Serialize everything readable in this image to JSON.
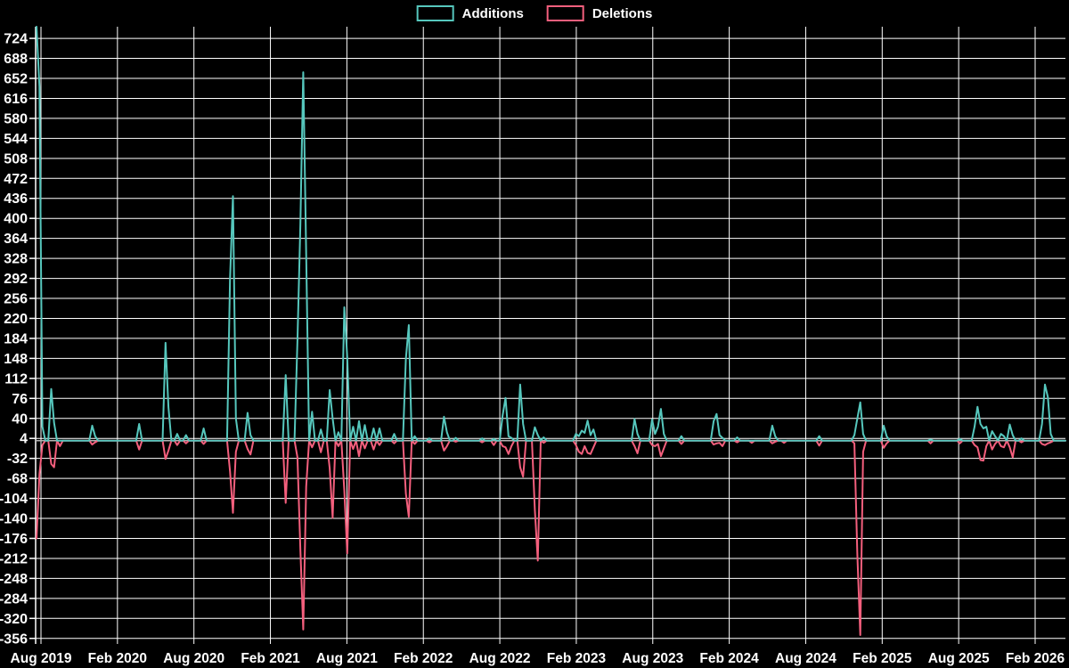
{
  "legend": {
    "items": [
      {
        "label": "Additions",
        "color": "#56c7bd"
      },
      {
        "label": "Deletions",
        "color": "#f45f7d"
      }
    ]
  },
  "colors": {
    "background": "#000000",
    "grid": "#ffffff",
    "axis": "#ffffff",
    "zero_line": "#b3b3b3",
    "text": "#ffffff",
    "additions": "#56c7bd",
    "deletions": "#f45f7d"
  },
  "chart_data": {
    "type": "line",
    "title": "",
    "xlabel": "",
    "ylabel": "",
    "grid": true,
    "legend_position": "top-center",
    "x_ticks": [
      "Aug 2019",
      "Feb 2020",
      "Aug 2020",
      "Feb 2021",
      "Aug 2021",
      "Feb 2022",
      "Aug 2022",
      "Feb 2023",
      "Aug 2023",
      "Feb 2024",
      "Aug 2024",
      "Feb 2025",
      "Aug 2025",
      "Feb 2026"
    ],
    "y_ticks": [
      724,
      688,
      652,
      616,
      580,
      544,
      508,
      472,
      436,
      400,
      364,
      328,
      292,
      256,
      220,
      184,
      148,
      112,
      76,
      40,
      4,
      -32,
      -68,
      -104,
      -140,
      -176,
      -212,
      -248,
      -284,
      -320,
      -356
    ],
    "ylim": [
      -366,
      745
    ],
    "series": [
      {
        "name": "Additions",
        "color": "#56c7bd"
      },
      {
        "name": "Deletions",
        "color": "#f45f7d"
      }
    ],
    "weeks_total": 352,
    "points_format": [
      "week_index",
      "additions",
      "deletions"
    ],
    "points_note": "weekly data; weeks not listed are [0,0]; first week starts late Jul 2019",
    "points": [
      [
        0,
        745,
        -176
      ],
      [
        1,
        637,
        -60
      ],
      [
        2,
        25,
        -8
      ],
      [
        5,
        93,
        -42
      ],
      [
        6,
        32,
        -48
      ],
      [
        8,
        0,
        -10
      ],
      [
        19,
        27,
        -7
      ],
      [
        20,
        8,
        -3
      ],
      [
        35,
        30,
        -16
      ],
      [
        44,
        176,
        -33
      ],
      [
        45,
        60,
        -18
      ],
      [
        48,
        12,
        -8
      ],
      [
        51,
        10,
        -5
      ],
      [
        57,
        22,
        -6
      ],
      [
        66,
        290,
        -55
      ],
      [
        67,
        440,
        -130
      ],
      [
        68,
        40,
        -20
      ],
      [
        72,
        50,
        -15
      ],
      [
        73,
        10,
        -25
      ],
      [
        85,
        118,
        -112
      ],
      [
        89,
        180,
        -30
      ],
      [
        90,
        390,
        -197
      ],
      [
        91,
        663,
        -340
      ],
      [
        92,
        336,
        -83
      ],
      [
        94,
        52,
        -12
      ],
      [
        97,
        20,
        -21
      ],
      [
        100,
        91,
        -50
      ],
      [
        101,
        40,
        -139
      ],
      [
        103,
        15,
        -10
      ],
      [
        105,
        240,
        -90
      ],
      [
        106,
        150,
        -203
      ],
      [
        108,
        25,
        -15
      ],
      [
        110,
        35,
        -28
      ],
      [
        112,
        28,
        -14
      ],
      [
        115,
        22,
        -16
      ],
      [
        117,
        22,
        -8
      ],
      [
        122,
        12,
        -5
      ],
      [
        126,
        147,
        -95
      ],
      [
        127,
        208,
        -137
      ],
      [
        129,
        8,
        -6
      ],
      [
        134,
        4,
        -3
      ],
      [
        139,
        43,
        -18
      ],
      [
        140,
        15,
        -10
      ],
      [
        143,
        5,
        -2
      ],
      [
        152,
        4,
        -3
      ],
      [
        156,
        3,
        -8
      ],
      [
        159,
        45,
        -10
      ],
      [
        160,
        77,
        -12
      ],
      [
        161,
        8,
        -24
      ],
      [
        162,
        5,
        -10
      ],
      [
        165,
        101,
        -48
      ],
      [
        166,
        30,
        -65
      ],
      [
        170,
        24,
        -125
      ],
      [
        171,
        10,
        -216
      ],
      [
        173,
        6,
        -4
      ],
      [
        184,
        12,
        -8
      ],
      [
        185,
        8,
        -20
      ],
      [
        186,
        18,
        -24
      ],
      [
        187,
        14,
        -10
      ],
      [
        188,
        36,
        -22
      ],
      [
        189,
        10,
        -24
      ],
      [
        190,
        20,
        -12
      ],
      [
        204,
        39,
        -10
      ],
      [
        205,
        12,
        -23
      ],
      [
        210,
        38,
        -8
      ],
      [
        211,
        12,
        -10
      ],
      [
        212,
        25,
        -6
      ],
      [
        213,
        57,
        -28
      ],
      [
        214,
        12,
        -14
      ],
      [
        220,
        8,
        -6
      ],
      [
        231,
        35,
        -7
      ],
      [
        232,
        48,
        -5
      ],
      [
        233,
        10,
        -4
      ],
      [
        234,
        5,
        -10
      ],
      [
        239,
        6,
        -3
      ],
      [
        244,
        0,
        -4
      ],
      [
        251,
        27,
        -5
      ],
      [
        252,
        8,
        -2
      ],
      [
        255,
        0,
        -4
      ],
      [
        267,
        8,
        -9
      ],
      [
        279,
        10,
        -5
      ],
      [
        280,
        40,
        -205
      ],
      [
        281,
        69,
        -350
      ],
      [
        282,
        12,
        -20
      ],
      [
        289,
        27,
        -13
      ],
      [
        290,
        8,
        -5
      ],
      [
        305,
        2,
        -5
      ],
      [
        315,
        3,
        -5
      ],
      [
        320,
        25,
        -8
      ],
      [
        321,
        61,
        -12
      ],
      [
        322,
        30,
        -35
      ],
      [
        323,
        22,
        -36
      ],
      [
        324,
        25,
        -10
      ],
      [
        326,
        17,
        -16
      ],
      [
        327,
        8,
        -6
      ],
      [
        329,
        12,
        -10
      ],
      [
        330,
        8,
        -12
      ],
      [
        332,
        29,
        -12
      ],
      [
        333,
        10,
        -30
      ],
      [
        336,
        4,
        -3
      ],
      [
        343,
        30,
        -6
      ],
      [
        344,
        101,
        -8
      ],
      [
        345,
        78,
        -5
      ],
      [
        346,
        12,
        -3
      ]
    ]
  }
}
